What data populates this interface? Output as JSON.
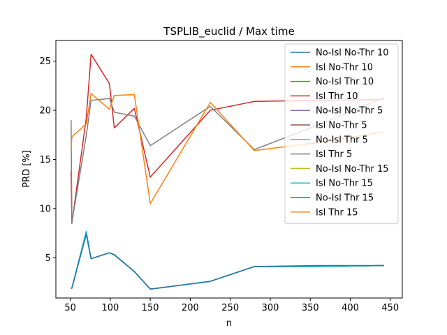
{
  "chart_data": {
    "type": "line",
    "title": "TSPLIB_euclid / Max time",
    "xlabel": "n",
    "ylabel": "PRD [%]",
    "xlim": [
      32,
      465
    ],
    "ylim": [
      0.9,
      27.1
    ],
    "xticks": [
      50,
      100,
      150,
      200,
      250,
      300,
      350,
      400,
      450
    ],
    "yticks": [
      5,
      10,
      15,
      20,
      25
    ],
    "grid": false,
    "legend_position": "top-right",
    "x": [
      51,
      52,
      70,
      76,
      99,
      105,
      130,
      150,
      225,
      280,
      360,
      442
    ],
    "series": [
      {
        "name": "No-Isl No-Thr 10",
        "color": "#1f77b4",
        "values": [
          1.9,
          1.9,
          7.4,
          4.9,
          5.5,
          5.3,
          3.6,
          1.8,
          2.6,
          4.1,
          4.1,
          4.2
        ]
      },
      {
        "name": "Isl No-Thr 10",
        "color": "#ff7f0e",
        "values": [
          1.9,
          1.9,
          7.6,
          4.9,
          5.5,
          5.3,
          3.6,
          1.8,
          2.6,
          4.1,
          4.1,
          4.2
        ]
      },
      {
        "name": "No-Isl Thr 10",
        "color": "#2ca02c",
        "values": [
          1.9,
          1.9,
          7.5,
          4.9,
          5.5,
          5.3,
          3.6,
          1.8,
          2.6,
          4.1,
          4.1,
          4.2
        ]
      },
      {
        "name": "Isl Thr 10",
        "color": "#d62728",
        "values": [
          13.8,
          8.5,
          19.2,
          25.7,
          22.7,
          18.2,
          20.2,
          13.2,
          20.0,
          20.9,
          21.0,
          21.1
        ]
      },
      {
        "name": "No-Isl No-Thr 5",
        "color": "#9467bd",
        "values": [
          1.9,
          1.9,
          7.5,
          4.9,
          5.5,
          5.3,
          3.6,
          1.8,
          2.6,
          4.1,
          4.1,
          4.2
        ]
      },
      {
        "name": "Isl No-Thr 5",
        "color": "#8c564b",
        "values": [
          1.9,
          1.9,
          7.5,
          4.9,
          5.5,
          5.3,
          3.6,
          1.8,
          2.6,
          4.1,
          4.1,
          4.2
        ]
      },
      {
        "name": "No-Isl Thr 5",
        "color": "#e377c2",
        "values": [
          1.9,
          1.9,
          7.5,
          4.9,
          5.5,
          5.3,
          3.6,
          1.8,
          2.6,
          4.1,
          4.1,
          4.2
        ]
      },
      {
        "name": "Isl Thr 5",
        "color": "#7f7f7f",
        "values": [
          19.0,
          8.6,
          17.4,
          21.0,
          21.2,
          19.8,
          19.4,
          16.4,
          20.4,
          16.0,
          18.5,
          21.3
        ]
      },
      {
        "name": "No-Isl No-Thr 15",
        "color": "#bcbd22",
        "values": [
          1.9,
          1.9,
          7.5,
          4.9,
          5.5,
          5.3,
          3.6,
          1.8,
          2.6,
          4.1,
          4.1,
          4.2
        ]
      },
      {
        "name": "Isl No-Thr 15",
        "color": "#17becf",
        "values": [
          1.9,
          1.9,
          7.7,
          4.9,
          5.5,
          5.3,
          3.6,
          1.8,
          2.6,
          4.1,
          4.1,
          4.2
        ]
      },
      {
        "name": "No-Isl Thr 15",
        "color": "#1f77b4",
        "values": [
          1.9,
          1.9,
          7.4,
          4.9,
          5.5,
          5.3,
          3.6,
          1.8,
          2.6,
          4.1,
          4.2,
          4.2
        ]
      },
      {
        "name": "Isl Thr 15",
        "color": "#ff7f0e",
        "values": [
          16.2,
          17.3,
          18.6,
          21.7,
          20.1,
          21.5,
          21.6,
          10.5,
          20.8,
          15.9,
          16.7,
          17.8
        ]
      }
    ]
  }
}
